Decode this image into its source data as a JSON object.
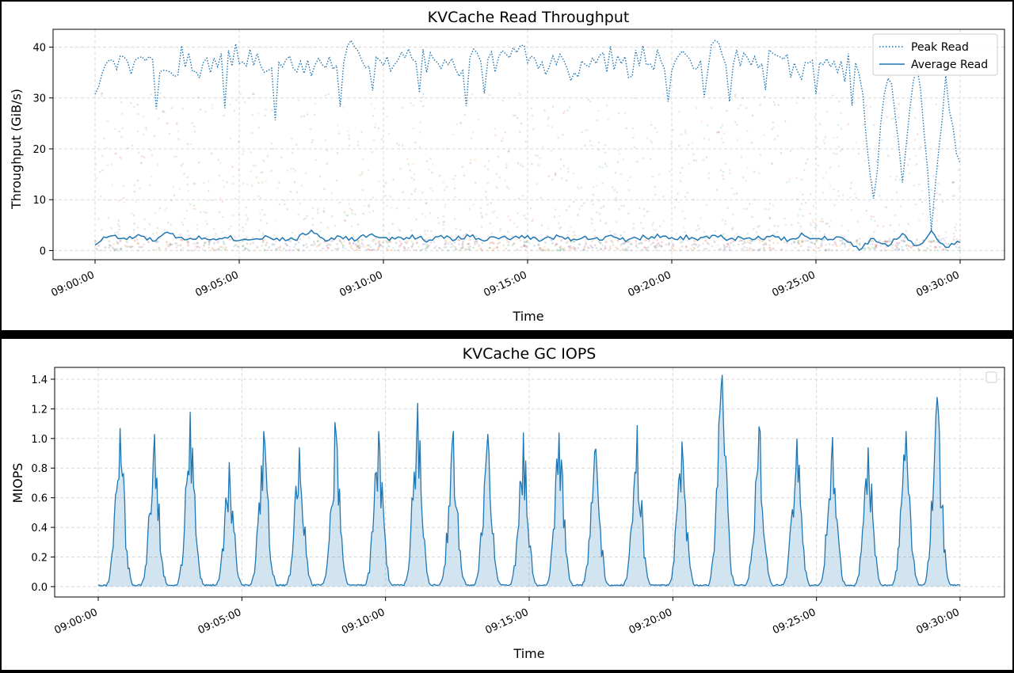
{
  "chart_data": [
    {
      "type": "line",
      "title": "KVCache Read Throughput",
      "xlabel": "Time",
      "ylabel": "Throughput (GiB/s)",
      "ylim": [
        -1.8,
        43.5
      ],
      "yticks": [
        0,
        10,
        20,
        30,
        40
      ],
      "xticks": [
        "09:00:00",
        "09:05:00",
        "09:10:00",
        "09:15:00",
        "09:20:00",
        "09:25:00",
        "09:30:00"
      ],
      "grid": true,
      "legend": "top-right",
      "background_scatter": "faint multicolored per-request samples between 0 and ~30 GiB/s",
      "series": [
        {
          "name": "Peak Read",
          "style": "dotted",
          "color": "#1f77b4",
          "x_minutes": [
            0,
            0.5,
            1,
            1.5,
            2,
            2.5,
            3,
            3.5,
            4,
            4.5,
            5,
            5.5,
            6,
            6.5,
            7,
            7.5,
            8,
            8.5,
            9,
            9.5,
            10,
            10.5,
            11,
            11.5,
            12,
            12.5,
            13,
            13.5,
            14,
            14.5,
            15,
            15.5,
            16,
            16.5,
            17,
            17.5,
            18,
            18.5,
            19,
            19.5,
            20,
            20.5,
            21,
            21.5,
            22,
            22.5,
            23,
            23.5,
            24,
            24.5,
            25,
            25.5,
            26,
            26.5,
            27,
            27.5,
            28,
            28.5,
            29,
            29.5,
            30
          ],
          "values": [
            32,
            39,
            36,
            38,
            37,
            34,
            38,
            36,
            37,
            38,
            39,
            37,
            36,
            38,
            37,
            35,
            38,
            36,
            40,
            37,
            38,
            36,
            39,
            37,
            38,
            36,
            39,
            38,
            37,
            39,
            38,
            36,
            37,
            35,
            38,
            37,
            38,
            36,
            39,
            37,
            34,
            38,
            36,
            39,
            37,
            38,
            36,
            39,
            37,
            35,
            38,
            36,
            38,
            37,
            10,
            36,
            15,
            38,
            6,
            34,
            16
          ]
        },
        {
          "name": "Average Read",
          "style": "solid",
          "color": "#1f77b4",
          "x_minutes": [
            0,
            0.5,
            1,
            1.5,
            2,
            2.5,
            3,
            3.5,
            4,
            4.5,
            5,
            5.5,
            6,
            6.5,
            7,
            7.5,
            8,
            8.5,
            9,
            9.5,
            10,
            10.5,
            11,
            11.5,
            12,
            12.5,
            13,
            13.5,
            14,
            14.5,
            15,
            15.5,
            16,
            16.5,
            17,
            17.5,
            18,
            18.5,
            19,
            19.5,
            20,
            20.5,
            21,
            21.5,
            22,
            22.5,
            23,
            23.5,
            24,
            24.5,
            25,
            25.5,
            26,
            26.5,
            27,
            27.5,
            28,
            28.5,
            29,
            29.5,
            30
          ],
          "values": [
            1.3,
            3.0,
            2.2,
            2.8,
            2.0,
            3.3,
            2.4,
            2.6,
            2.2,
            2.9,
            2.0,
            2.5,
            2.7,
            2.1,
            2.4,
            3.9,
            2.3,
            2.6,
            2.1,
            3.2,
            2.2,
            2.4,
            2.8,
            2.1,
            2.6,
            2.3,
            2.9,
            2.2,
            2.5,
            2.4,
            2.7,
            2.1,
            2.8,
            2.3,
            2.6,
            2.2,
            2.9,
            2.0,
            2.6,
            2.8,
            2.2,
            2.6,
            2.3,
            2.9,
            2.2,
            2.5,
            2.4,
            2.7,
            2.1,
            3.1,
            2.2,
            2.6,
            2.5,
            0.3,
            2.4,
            0.8,
            3.6,
            0.6,
            3.8,
            0.5,
            1.6
          ]
        }
      ]
    },
    {
      "type": "area",
      "title": "KVCache GC IOPS",
      "xlabel": "Time",
      "ylabel": "MIOPS",
      "ylim": [
        -0.07,
        1.48
      ],
      "yticks": [
        "0.0",
        "0.2",
        "0.4",
        "0.6",
        "0.8",
        "1.0",
        "1.2",
        "1.4"
      ],
      "xticks": [
        "09:00:00",
        "09:05:00",
        "09:10:00",
        "09:15:00",
        "09:20:00",
        "09:25:00",
        "09:30:00"
      ],
      "grid": true,
      "legend": "top-right (empty)",
      "color": "#1f77b4",
      "fill_color": "#1f77b4",
      "baseline": 0.01,
      "peaks": [
        {
          "center_minutes": 0.75,
          "max": 1.07
        },
        {
          "center_minutes": 1.95,
          "max": 1.03
        },
        {
          "center_minutes": 3.2,
          "max": 1.18
        },
        {
          "center_minutes": 4.55,
          "max": 0.84
        },
        {
          "center_minutes": 5.75,
          "max": 1.05
        },
        {
          "center_minutes": 7.0,
          "max": 0.94
        },
        {
          "center_minutes": 8.25,
          "max": 1.11
        },
        {
          "center_minutes": 9.75,
          "max": 1.05
        },
        {
          "center_minutes": 11.1,
          "max": 1.24
        },
        {
          "center_minutes": 12.35,
          "max": 1.05
        },
        {
          "center_minutes": 13.55,
          "max": 1.03
        },
        {
          "center_minutes": 14.8,
          "max": 1.04
        },
        {
          "center_minutes": 16.05,
          "max": 1.04
        },
        {
          "center_minutes": 17.3,
          "max": 0.93
        },
        {
          "center_minutes": 18.75,
          "max": 1.09
        },
        {
          "center_minutes": 20.3,
          "max": 0.98
        },
        {
          "center_minutes": 21.7,
          "max": 1.43
        },
        {
          "center_minutes": 23.0,
          "max": 1.08
        },
        {
          "center_minutes": 24.3,
          "max": 1.0
        },
        {
          "center_minutes": 25.55,
          "max": 1.01
        },
        {
          "center_minutes": 26.8,
          "max": 0.94
        },
        {
          "center_minutes": 28.1,
          "max": 1.05
        },
        {
          "center_minutes": 29.2,
          "max": 1.28
        }
      ]
    }
  ]
}
